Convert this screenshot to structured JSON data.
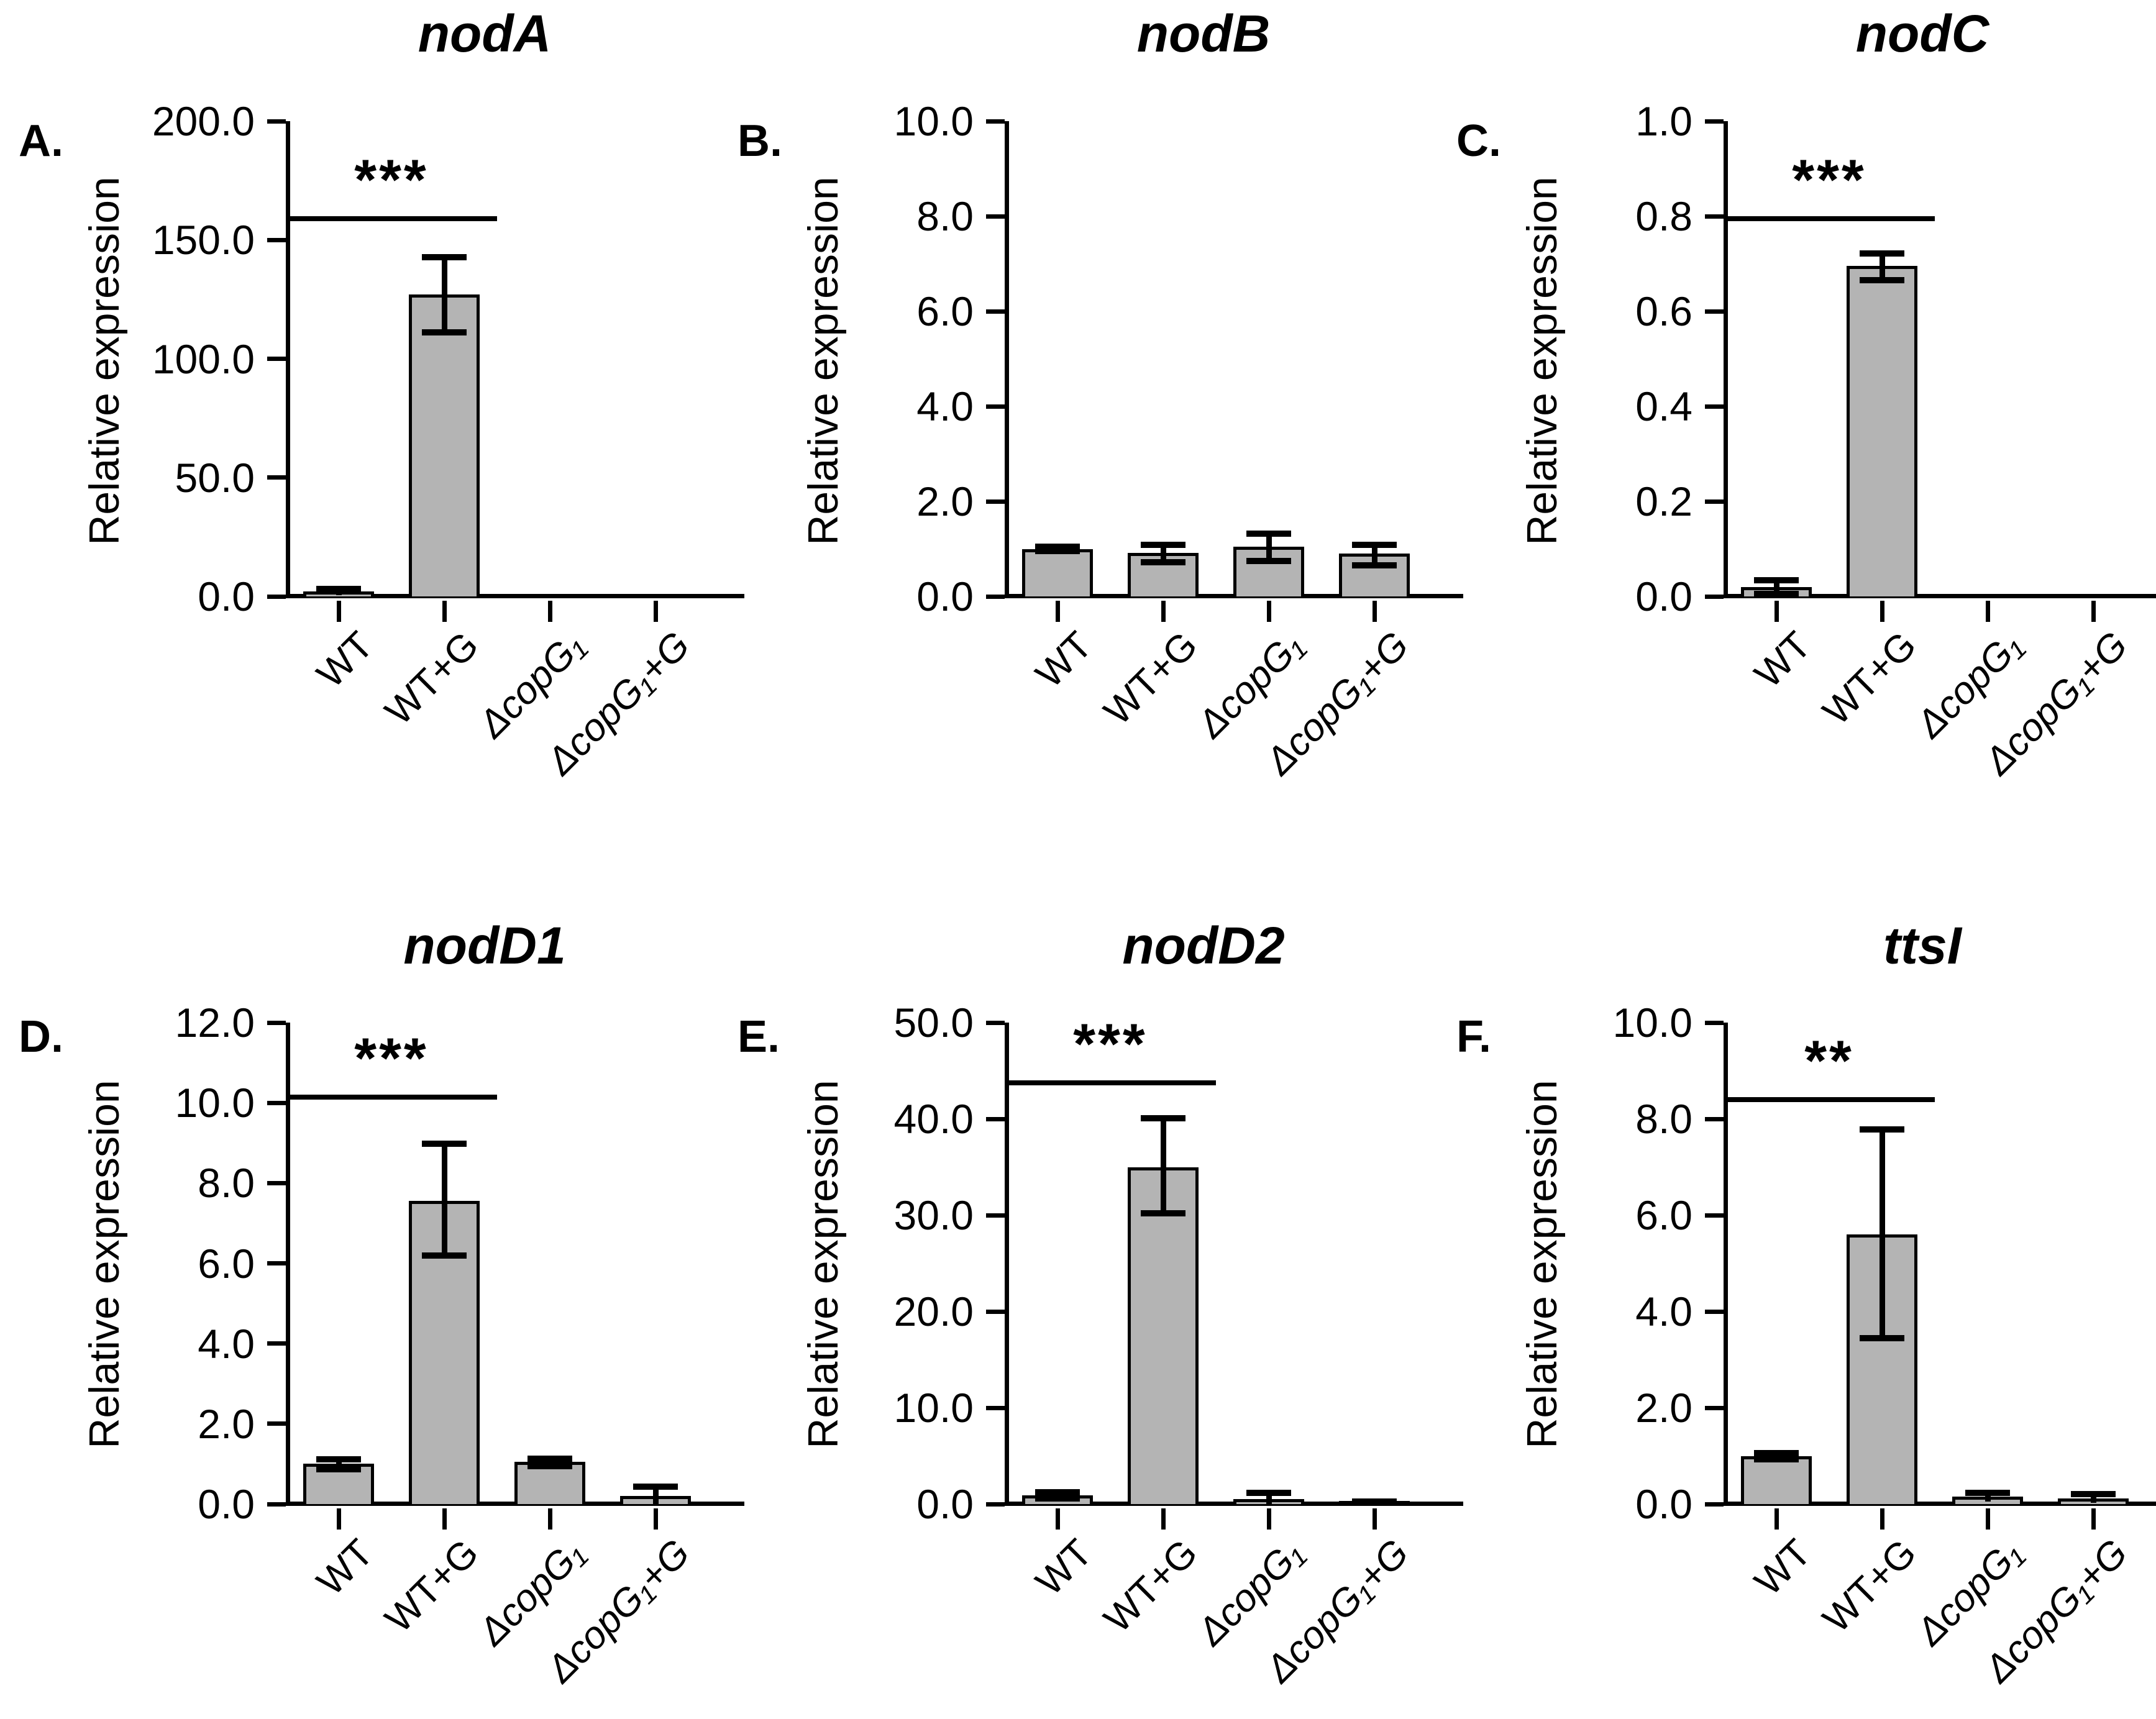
{
  "figure": {
    "background_color": "#ffffff",
    "bar_fill_color": "#b4b4b4",
    "line_color": "#000000"
  },
  "chart_data": [
    {
      "type": "bar",
      "letter": "A.",
      "title": "nodA",
      "ylabel": "Relative expression",
      "ylim": [
        0,
        200
      ],
      "yticks": {
        "values": [
          0,
          50,
          100,
          150,
          200
        ],
        "labels": [
          "0.0",
          "50.0",
          "100.0",
          "150.0",
          "200.0"
        ]
      },
      "categories": [
        {
          "text": "WT",
          "italic": false
        },
        {
          "text": "WT+G",
          "italic": false
        },
        {
          "text": "ΔcopG₁",
          "italic": true
        },
        {
          "text": "ΔcopG₁+G",
          "italic": true
        }
      ],
      "values": [
        2,
        127,
        0,
        0
      ],
      "err_low": [
        1.5,
        16,
        0,
        0
      ],
      "err_high": [
        1.5,
        16,
        0,
        0
      ],
      "significance": {
        "label": "***",
        "from": 0,
        "to": 1,
        "y": 160
      },
      "grid": "off",
      "legend": "none"
    },
    {
      "type": "bar",
      "letter": "B.",
      "title": "nodB",
      "ylabel": "Relative expression",
      "ylim": [
        0,
        10
      ],
      "yticks": {
        "values": [
          0,
          2,
          4,
          6,
          8,
          10
        ],
        "labels": [
          "0.0",
          "2.0",
          "4.0",
          "6.0",
          "8.0",
          "10.0"
        ]
      },
      "categories": [
        {
          "text": "WT",
          "italic": false
        },
        {
          "text": "WT+G",
          "italic": false
        },
        {
          "text": "ΔcopG₁",
          "italic": true
        },
        {
          "text": "ΔcopG₁+G",
          "italic": true
        }
      ],
      "values": [
        1.0,
        0.92,
        1.05,
        0.9
      ],
      "err_low": [
        0.05,
        0.2,
        0.3,
        0.25
      ],
      "err_high": [
        0.06,
        0.18,
        0.28,
        0.2
      ],
      "significance": null,
      "grid": "off",
      "legend": "none"
    },
    {
      "type": "bar",
      "letter": "C.",
      "title": "nodC",
      "ylabel": "Relative expression",
      "ylim": [
        0,
        1.0
      ],
      "yticks": {
        "values": [
          0,
          0.2,
          0.4,
          0.6,
          0.8,
          1.0
        ],
        "labels": [
          "0.0",
          "0.2",
          "0.4",
          "0.6",
          "0.8",
          "1.0"
        ]
      },
      "categories": [
        {
          "text": "WT",
          "italic": false
        },
        {
          "text": "WT+G",
          "italic": false
        },
        {
          "text": "ΔcopG₁",
          "italic": true
        },
        {
          "text": "ΔcopG₁+G",
          "italic": true
        }
      ],
      "values": [
        0.02,
        0.695,
        0,
        0
      ],
      "err_low": [
        0.015,
        0.03,
        0,
        0
      ],
      "err_high": [
        0.015,
        0.028,
        0,
        0
      ],
      "significance": {
        "label": "***",
        "from": 0,
        "to": 1,
        "y": 0.8
      },
      "grid": "off",
      "legend": "none"
    },
    {
      "type": "bar",
      "letter": "D.",
      "title": "nodD1",
      "ylabel": "Relative expression",
      "ylim": [
        0,
        12
      ],
      "yticks": {
        "values": [
          0,
          2,
          4,
          6,
          8,
          10,
          12
        ],
        "labels": [
          "0.0",
          "2.0",
          "4.0",
          "6.0",
          "8.0",
          "10.0",
          "12.0"
        ]
      },
      "categories": [
        {
          "text": "WT",
          "italic": false
        },
        {
          "text": "WT+G",
          "italic": false
        },
        {
          "text": "ΔcopG₁",
          "italic": true
        },
        {
          "text": "ΔcopG₁+G",
          "italic": true
        }
      ],
      "values": [
        1.0,
        7.55,
        1.05,
        0.2
      ],
      "err_low": [
        0.13,
        1.35,
        0.1,
        0.2
      ],
      "err_high": [
        0.13,
        1.45,
        0.1,
        0.25
      ],
      "significance": {
        "label": "***",
        "from": 0,
        "to": 1,
        "y": 10.2
      },
      "grid": "off",
      "legend": "none"
    },
    {
      "type": "bar",
      "letter": "E.",
      "title": "nodD2",
      "ylabel": "Relative expression",
      "ylim": [
        0,
        50
      ],
      "yticks": {
        "values": [
          0,
          10,
          20,
          30,
          40,
          50
        ],
        "labels": [
          "0.0",
          "10.0",
          "20.0",
          "30.0",
          "40.0",
          "50.0"
        ]
      },
      "categories": [
        {
          "text": "WT",
          "italic": false
        },
        {
          "text": "WT+G",
          "italic": false
        },
        {
          "text": "ΔcopG₁",
          "italic": true
        },
        {
          "text": "ΔcopG₁+G",
          "italic": true
        }
      ],
      "values": [
        0.9,
        35.0,
        0.5,
        0.15
      ],
      "err_low": [
        0.35,
        4.8,
        0.5,
        0.15
      ],
      "err_high": [
        0.4,
        5.1,
        0.7,
        0.2
      ],
      "significance": {
        "label": "***",
        "from": 0,
        "to": 1,
        "y": 44
      },
      "grid": "off",
      "legend": "none"
    },
    {
      "type": "bar",
      "letter": "F.",
      "title": "ttsI",
      "ylabel": "Relative expression",
      "ylim": [
        0,
        10
      ],
      "yticks": {
        "values": [
          0,
          2,
          4,
          6,
          8,
          10
        ],
        "labels": [
          "0.0",
          "2.0",
          "4.0",
          "6.0",
          "8.0",
          "10.0"
        ]
      },
      "categories": [
        {
          "text": "WT",
          "italic": false
        },
        {
          "text": "WT+G",
          "italic": false
        },
        {
          "text": "ΔcopG₁",
          "italic": true
        },
        {
          "text": "ΔcopG₁+G",
          "italic": true
        }
      ],
      "values": [
        1.0,
        5.6,
        0.15,
        0.12
      ],
      "err_low": [
        0.07,
        2.15,
        0.1,
        0.1
      ],
      "err_high": [
        0.07,
        2.2,
        0.1,
        0.1
      ],
      "significance": {
        "label": "**",
        "from": 0,
        "to": 1,
        "y": 8.45
      },
      "grid": "off",
      "legend": "none"
    }
  ]
}
